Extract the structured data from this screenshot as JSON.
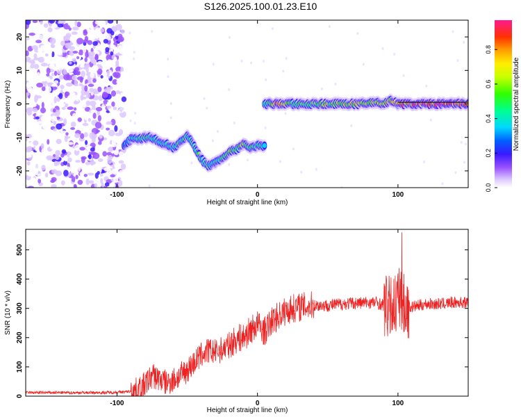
{
  "title": "S126.2025.100.01.23.E10",
  "chart_data": [
    {
      "type": "heatmap",
      "xlabel": "Height of straight line (km)",
      "ylabel": "Frequency (Hz)",
      "xlim": [
        -165,
        150
      ],
      "ylim": [
        -25,
        25
      ],
      "xticks": [
        -100,
        0,
        100
      ],
      "yticks": [
        -20,
        -10,
        0,
        10,
        20
      ],
      "colorbar": {
        "label": "Normalized spectral amplitude",
        "range": [
          0,
          0.97
        ],
        "ticks": [
          0.0,
          0.2,
          0.4,
          0.6,
          0.8
        ]
      },
      "noise_region_x": [
        -165,
        -95
      ],
      "ridge": [
        {
          "x": -95,
          "f": -12.5,
          "amp": 0.3
        },
        {
          "x": -90,
          "f": -10.5,
          "amp": 0.45
        },
        {
          "x": -85,
          "f": -10.5,
          "amp": 0.5
        },
        {
          "x": -80,
          "f": -10.0,
          "amp": 0.55
        },
        {
          "x": -75,
          "f": -10.0,
          "amp": 0.5
        },
        {
          "x": -70,
          "f": -11.5,
          "amp": 0.45
        },
        {
          "x": -65,
          "f": -12.0,
          "amp": 0.5
        },
        {
          "x": -60,
          "f": -13.0,
          "amp": 0.45
        },
        {
          "x": -55,
          "f": -11.5,
          "amp": 0.55
        },
        {
          "x": -50,
          "f": -9.5,
          "amp": 0.5
        },
        {
          "x": -45,
          "f": -12.5,
          "amp": 0.5
        },
        {
          "x": -40,
          "f": -16.5,
          "amp": 0.55
        },
        {
          "x": -35,
          "f": -18.5,
          "amp": 0.55
        },
        {
          "x": -30,
          "f": -17.5,
          "amp": 0.5
        },
        {
          "x": -25,
          "f": -16.0,
          "amp": 0.55
        },
        {
          "x": -20,
          "f": -14.5,
          "amp": 0.6
        },
        {
          "x": -15,
          "f": -13.5,
          "amp": 0.6
        },
        {
          "x": -10,
          "f": -12.0,
          "amp": 0.75
        },
        {
          "x": -5,
          "f": -13.0,
          "amp": 0.55
        },
        {
          "x": 0,
          "f": -12.5,
          "amp": 0.5
        },
        {
          "x": 5,
          "f": -12.5,
          "amp": 0.45
        },
        {
          "x": 5,
          "f": 0.0,
          "amp": 0.5
        },
        {
          "x": 15,
          "f": 0.0,
          "amp": 0.85
        },
        {
          "x": 25,
          "f": 0.0,
          "amp": 0.6
        },
        {
          "x": 35,
          "f": 0.0,
          "amp": 0.6
        },
        {
          "x": 45,
          "f": 0.0,
          "amp": 0.65
        },
        {
          "x": 55,
          "f": 0.0,
          "amp": 0.65
        },
        {
          "x": 65,
          "f": 0.0,
          "amp": 0.7
        },
        {
          "x": 75,
          "f": 0.0,
          "amp": 0.75
        },
        {
          "x": 85,
          "f": 0.5,
          "amp": 0.7
        },
        {
          "x": 90,
          "f": 0.0,
          "amp": 0.7
        },
        {
          "x": 95,
          "f": 1.0,
          "amp": 0.8
        },
        {
          "x": 100,
          "f": 0.0,
          "amp": 0.85
        },
        {
          "x": 110,
          "f": 0.0,
          "amp": 0.9
        },
        {
          "x": 120,
          "f": 0.0,
          "amp": 0.95
        },
        {
          "x": 130,
          "f": 0.0,
          "amp": 0.95
        },
        {
          "x": 140,
          "f": 0.0,
          "amp": 0.95
        },
        {
          "x": 150,
          "f": 0.0,
          "amp": 0.95
        }
      ]
    },
    {
      "type": "line",
      "xlabel": "Height of straight line (km)",
      "ylabel": "SNR (10 * v/v)",
      "xlim": [
        -165,
        150
      ],
      "ylim": [
        0,
        570
      ],
      "xticks": [
        -100,
        0,
        100
      ],
      "yticks": [
        0,
        100,
        200,
        300,
        400,
        500
      ],
      "color": "#ee2222",
      "series": [
        {
          "x": [
            -165,
            -150,
            -130,
            -110,
            -95,
            -85,
            -80,
            -75,
            -70,
            -65,
            -60,
            -55,
            -50,
            -45,
            -40,
            -35,
            -30,
            -25,
            -20,
            -15,
            -10,
            -5,
            0,
            5,
            10,
            15,
            20,
            25,
            30,
            40,
            50,
            60,
            70,
            80,
            85,
            90,
            95,
            100,
            102,
            105,
            110,
            120,
            130,
            140,
            150
          ],
          "y": [
            12,
            12,
            12,
            12,
            14,
            20,
            40,
            70,
            60,
            45,
            55,
            70,
            90,
            115,
            140,
            155,
            150,
            160,
            175,
            195,
            200,
            225,
            245,
            220,
            255,
            275,
            290,
            300,
            305,
            310,
            310,
            315,
            318,
            320,
            320,
            310,
            300,
            330,
            340,
            300,
            305,
            315,
            315,
            320,
            320
          ]
        }
      ]
    }
  ]
}
